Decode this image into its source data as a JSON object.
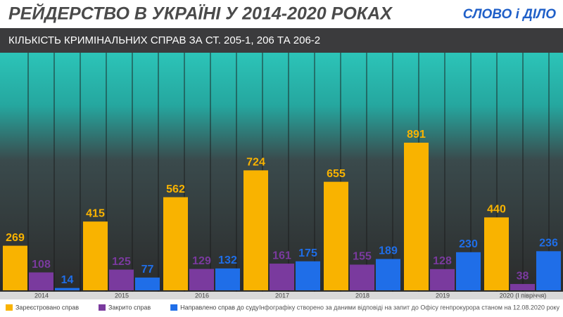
{
  "chart_data": {
    "type": "bar",
    "title": "РЕЙДЕРСТВО В УКРАЇНІ У 2014-2020 РОКАХ",
    "subtitle": "КІЛЬКІСТЬ КРИМІНАЛЬНИХ СПРАВ ЗА СТ. 205-1, 206 ТА 206-2",
    "logo": "СЛОВО і ДІЛО",
    "source": "Інфографіку створено за даними відповіді на запит до Офісу генпрокурора станом на 12.08.2020 року",
    "categories": [
      "2014",
      "2015",
      "2016",
      "2017",
      "2018",
      "2019",
      "2020 (І півріччя)"
    ],
    "series": [
      {
        "name": "Зареєстровано справ",
        "color": "#f9b300",
        "values": [
          269,
          415,
          562,
          724,
          655,
          891,
          440
        ]
      },
      {
        "name": "Закрито справ",
        "color": "#7a3a9e",
        "values": [
          108,
          125,
          129,
          161,
          155,
          128,
          38
        ]
      },
      {
        "name": "Направлено справ до суду",
        "color": "#1f6ee8",
        "values": [
          14,
          77,
          132,
          175,
          189,
          230,
          236
        ]
      }
    ]
  }
}
